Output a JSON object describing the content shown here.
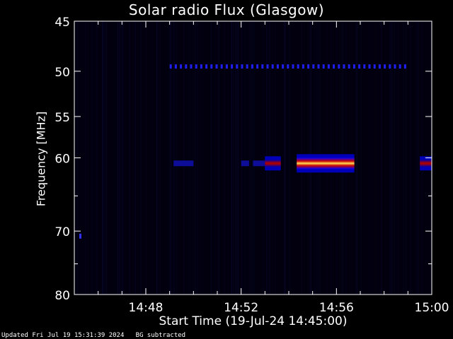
{
  "chart_data": {
    "type": "heatmap",
    "title": "Solar radio Flux (Glasgow)",
    "ylabel": "Frequency [MHz]",
    "xlabel": "Start Time (19-Jul-24 14:45:00)",
    "y_scale": "log",
    "ylim": [
      45,
      80
    ],
    "y_inverted": true,
    "y_ticks": [
      45,
      50,
      55,
      60,
      70,
      80
    ],
    "y_tick_labels": [
      "45",
      "50",
      "55",
      "60",
      "70",
      "80"
    ],
    "xlim_minutes": [
      14.75,
      15.0
    ],
    "x_ticks": [
      "14:48",
      "14:52",
      "14:56",
      "15:00"
    ],
    "colormap": [
      "#000000",
      "#00008c",
      "#0000ff",
      "#ff0000",
      "#ffff66"
    ],
    "features": [
      {
        "name": "band",
        "freq": 49.5,
        "t_start": "14:49",
        "t_end": "14:59",
        "intensity": 0.35,
        "dashed": true
      },
      {
        "name": "emission",
        "freq": 60.7,
        "t_start": "14:53",
        "t_end": "14:53:40",
        "intensity": 0.7
      },
      {
        "name": "emission",
        "freq": 60.7,
        "t_start": "14:54:20",
        "t_end": "14:56:45",
        "intensity": 1.0
      },
      {
        "name": "emission",
        "freq": 60.7,
        "t_start": "14:59:30",
        "t_end": "15:00",
        "intensity": 0.8
      }
    ]
  },
  "footer": "Updated Fri Jul 19 15:31:39 2024   BG subtracted"
}
